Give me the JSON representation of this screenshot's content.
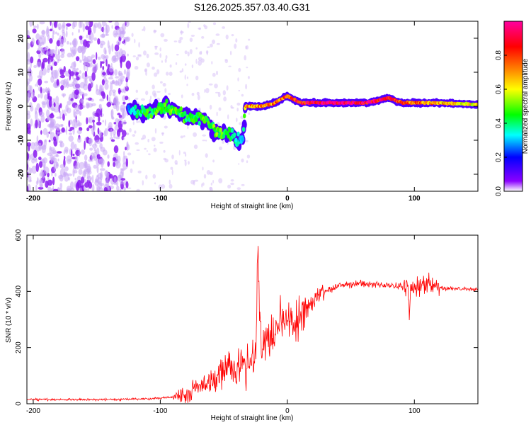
{
  "chart_data": [
    {
      "type": "heatmap",
      "title": "S126.2025.357.03.40.G31",
      "xlabel": "Height of straight line (km)",
      "ylabel": "Frequency (Hz)",
      "xlim": [
        -205,
        150
      ],
      "ylim": [
        -25,
        25
      ],
      "xticks": [
        -200,
        -100,
        0,
        100
      ],
      "yticks": [
        -20,
        -10,
        0,
        10,
        20
      ],
      "colorbar": {
        "label": "Normalized spectral amplitude",
        "range": [
          0,
          1
        ],
        "ticks": [
          "0.0",
          "0.2",
          "0.4",
          "0.6",
          "0.8"
        ],
        "colors": [
          "#ffffff",
          "#8b00ff",
          "#0000ff",
          "#00ffff",
          "#00ff00",
          "#ffff00",
          "#ff8000",
          "#ff0000",
          "#ff00a0"
        ]
      },
      "ridge": {
        "x": [
          -125,
          -110,
          -95,
          -80,
          -65,
          -55,
          -45,
          -40,
          -35,
          -33,
          -20,
          -10,
          0,
          10,
          20,
          40,
          60,
          70,
          80,
          90,
          100,
          120,
          150
        ],
        "frequency": [
          -1,
          -2,
          0,
          -3,
          -4,
          -8,
          -8,
          -10,
          -10,
          0,
          0,
          1,
          3,
          1,
          1,
          1,
          1,
          1.5,
          2.5,
          1,
          1,
          1,
          0.5
        ],
        "amplitude": [
          0.3,
          0.45,
          0.5,
          0.45,
          0.45,
          0.5,
          0.45,
          0.35,
          0.3,
          0.7,
          0.75,
          0.75,
          0.8,
          0.85,
          0.95,
          0.98,
          0.95,
          0.9,
          0.85,
          0.8,
          0.75,
          0.7,
          0.6
        ]
      }
    },
    {
      "type": "line",
      "xlabel": "Height of straight line (km)",
      "ylabel": "SNR (10 * v/v)",
      "xlim": [
        -205,
        150
      ],
      "ylim": [
        0,
        600
      ],
      "xticks": [
        -200,
        -100,
        0,
        100
      ],
      "yticks": [
        0,
        200,
        400,
        600
      ],
      "color": "#ff0000",
      "series": [
        {
          "name": "SNR",
          "x": [
            -205,
            -190,
            -170,
            -150,
            -130,
            -110,
            -100,
            -90,
            -80,
            -75,
            -70,
            -65,
            -60,
            -55,
            -50,
            -45,
            -40,
            -35,
            -30,
            -25,
            -23,
            -22,
            -21,
            -20,
            -15,
            -10,
            -5,
            0,
            5,
            10,
            15,
            20,
            25,
            30,
            35,
            40,
            50,
            60,
            70,
            80,
            90,
            95,
            96,
            97,
            100,
            110,
            115,
            120,
            130,
            140,
            150
          ],
          "values": [
            15,
            15,
            15,
            15,
            15,
            18,
            20,
            25,
            30,
            40,
            55,
            70,
            80,
            95,
            110,
            120,
            130,
            140,
            150,
            190,
            580,
            350,
            220,
            200,
            230,
            260,
            290,
            300,
            280,
            320,
            330,
            360,
            390,
            400,
            410,
            420,
            425,
            425,
            425,
            420,
            420,
            415,
            290,
            410,
            415,
            420,
            425,
            410,
            410,
            410,
            405
          ]
        }
      ]
    }
  ]
}
